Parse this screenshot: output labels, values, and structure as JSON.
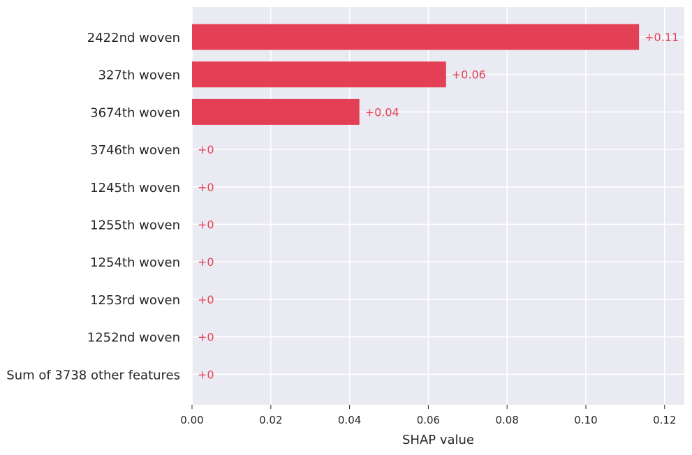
{
  "chart_data": {
    "type": "bar",
    "orientation": "horizontal",
    "categories": [
      "2422nd woven",
      "327th woven",
      "3674th woven",
      "3746th woven",
      "1245th woven",
      "1255th woven",
      "1254th woven",
      "1253rd woven",
      "1252nd woven",
      "Sum of 3738 other features"
    ],
    "values": [
      0.1135,
      0.0645,
      0.0425,
      0,
      0,
      0,
      0,
      0,
      0,
      0
    ],
    "value_labels": [
      "+0.11",
      "+0.06",
      "+0.04",
      "+0",
      "+0",
      "+0",
      "+0",
      "+0",
      "+0",
      "+0"
    ],
    "xlabel": "SHAP value",
    "ylabel": "",
    "xlim": [
      0,
      0.125
    ],
    "xticks": [
      0.0,
      0.02,
      0.04,
      0.06,
      0.08,
      0.1,
      0.12
    ],
    "xtick_labels": [
      "0.00",
      "0.02",
      "0.04",
      "0.06",
      "0.08",
      "0.10",
      "0.12"
    ],
    "grid": true,
    "colors": {
      "bar": "#e34055",
      "label": "#e34055",
      "background": "#eaeaf2",
      "grid": "#ffffff",
      "text": "#262626"
    }
  }
}
